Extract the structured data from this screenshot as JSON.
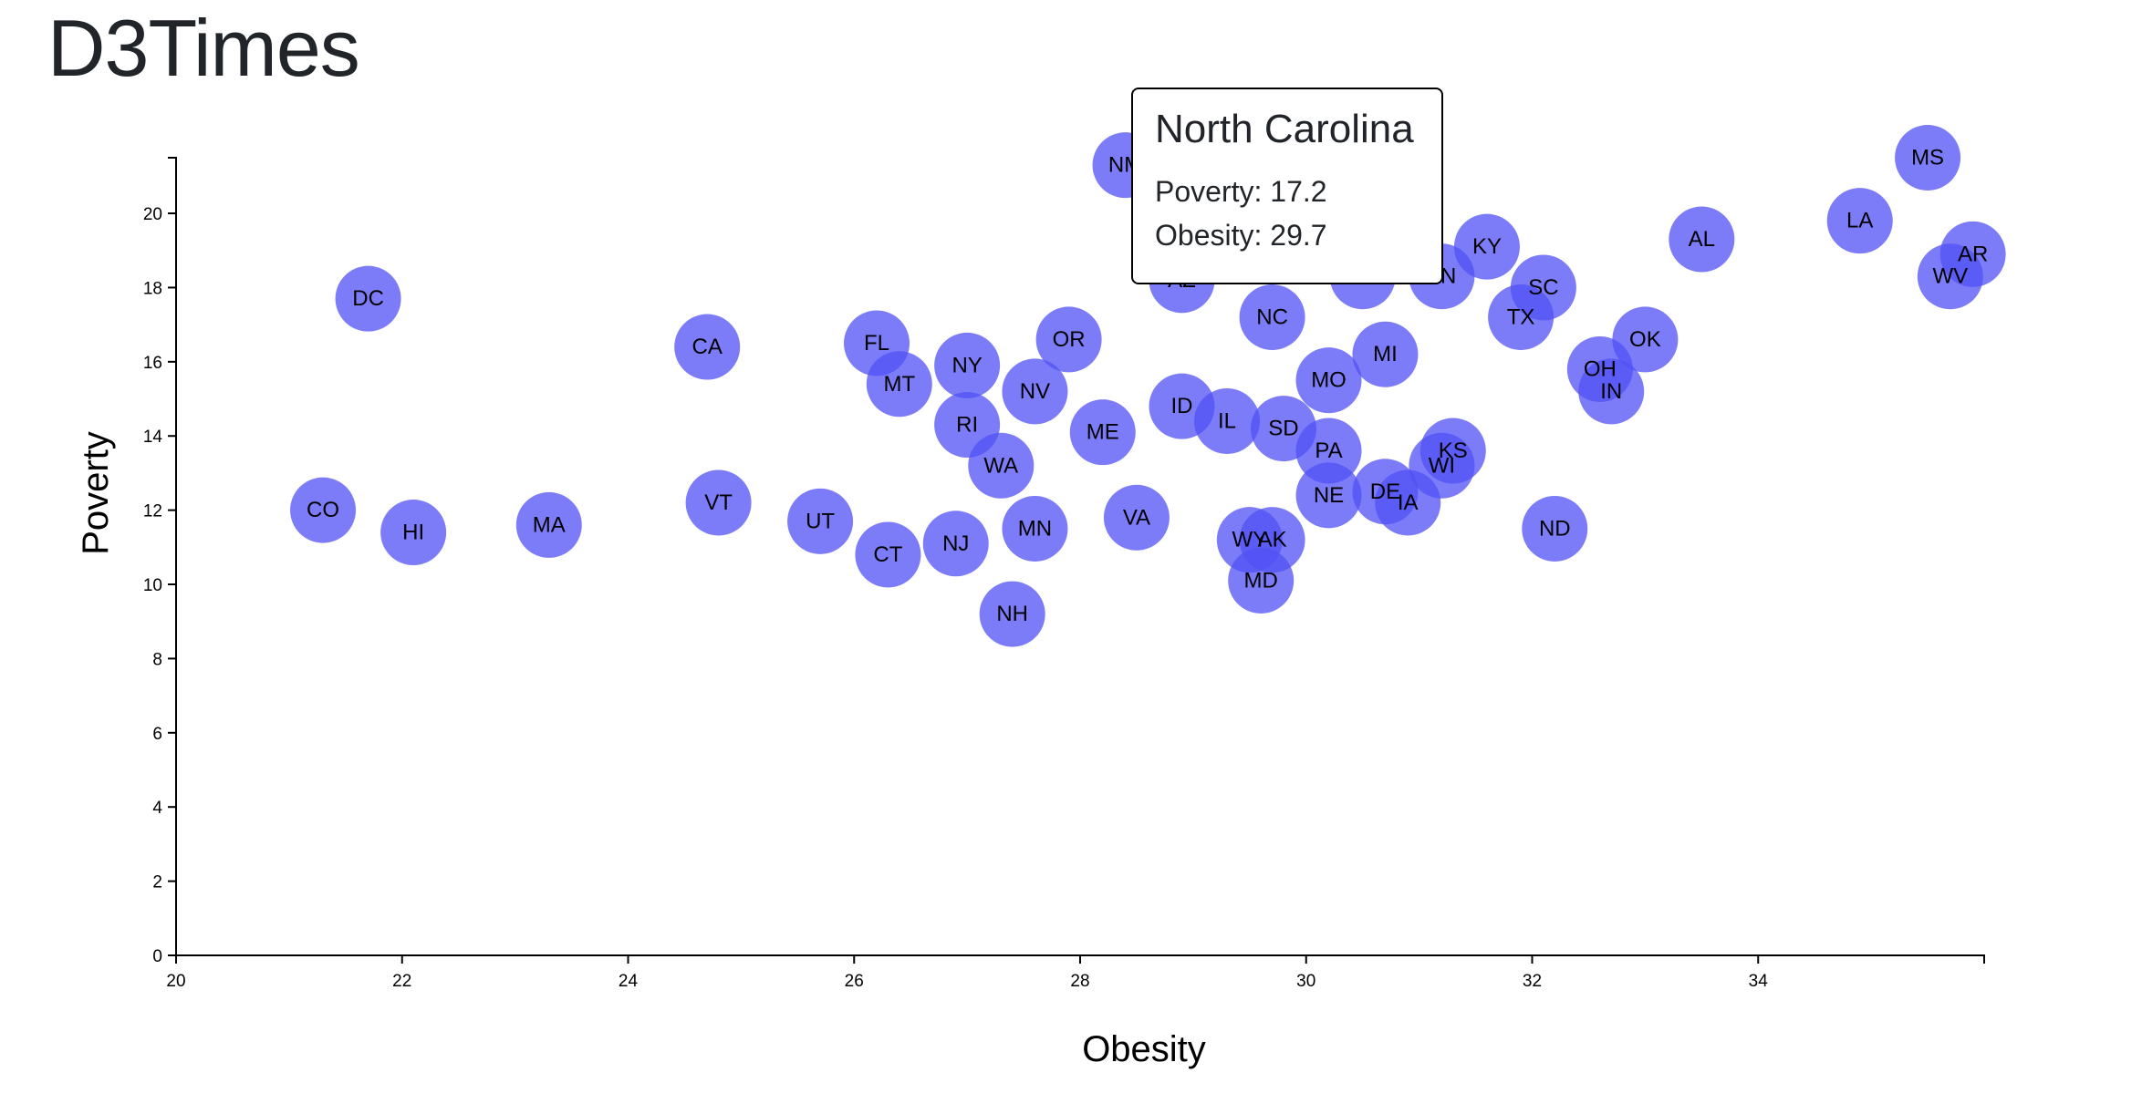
{
  "page": {
    "title": "D3Times"
  },
  "tooltip": {
    "state": "North Carolina",
    "poverty_label": "Poverty:",
    "poverty_value": "17.2",
    "obesity_label": "Obesity:",
    "obesity_value": "29.7"
  },
  "colors": {
    "marker": "#5050f5",
    "axis": "#000000"
  },
  "chart_data": {
    "type": "scatter",
    "xlabel": "Obesity",
    "ylabel": "Poverty",
    "xlim": [
      20,
      36
    ],
    "ylim": [
      0,
      21.5
    ],
    "xticks": [
      20,
      22,
      24,
      26,
      28,
      30,
      32,
      34
    ],
    "yticks": [
      0,
      2,
      4,
      6,
      8,
      10,
      12,
      14,
      16,
      18,
      20
    ],
    "grid": false,
    "points": [
      {
        "label": "MS",
        "x": 35.5,
        "y": 21.5
      },
      {
        "label": "NM",
        "x": 28.4,
        "y": 21.3
      },
      {
        "label": "LA",
        "x": 34.9,
        "y": 19.8
      },
      {
        "label": "AL",
        "x": 33.5,
        "y": 19.3
      },
      {
        "label": "KY",
        "x": 31.6,
        "y": 19.1
      },
      {
        "label": "AR",
        "x": 35.9,
        "y": 18.9
      },
      {
        "label": "WV",
        "x": 35.7,
        "y": 18.3
      },
      {
        "label": "GA",
        "x": 30.5,
        "y": 18.3
      },
      {
        "label": "TN",
        "x": 31.2,
        "y": 18.3
      },
      {
        "label": "AZ",
        "x": 28.9,
        "y": 18.2
      },
      {
        "label": "SC",
        "x": 32.1,
        "y": 18.0
      },
      {
        "label": "DC",
        "x": 21.7,
        "y": 17.7
      },
      {
        "label": "NC",
        "x": 29.7,
        "y": 17.2
      },
      {
        "label": "TX",
        "x": 31.9,
        "y": 17.2
      },
      {
        "label": "OR",
        "x": 27.9,
        "y": 16.6
      },
      {
        "label": "OK",
        "x": 33.0,
        "y": 16.6
      },
      {
        "label": "FL",
        "x": 26.2,
        "y": 16.5
      },
      {
        "label": "CA",
        "x": 24.7,
        "y": 16.4
      },
      {
        "label": "MI",
        "x": 30.7,
        "y": 16.2
      },
      {
        "label": "NY",
        "x": 27.0,
        "y": 15.9
      },
      {
        "label": "OH",
        "x": 32.6,
        "y": 15.8
      },
      {
        "label": "MO",
        "x": 30.2,
        "y": 15.5
      },
      {
        "label": "MT",
        "x": 26.4,
        "y": 15.4
      },
      {
        "label": "IN",
        "x": 32.7,
        "y": 15.2
      },
      {
        "label": "NV",
        "x": 27.6,
        "y": 15.2
      },
      {
        "label": "ID",
        "x": 28.9,
        "y": 14.8
      },
      {
        "label": "IL",
        "x": 29.3,
        "y": 14.4
      },
      {
        "label": "RI",
        "x": 27.0,
        "y": 14.3
      },
      {
        "label": "SD",
        "x": 29.8,
        "y": 14.2
      },
      {
        "label": "ME",
        "x": 28.2,
        "y": 14.1
      },
      {
        "label": "KS",
        "x": 31.3,
        "y": 13.6
      },
      {
        "label": "PA",
        "x": 30.2,
        "y": 13.6
      },
      {
        "label": "WA",
        "x": 27.3,
        "y": 13.2
      },
      {
        "label": "WI",
        "x": 31.2,
        "y": 13.2
      },
      {
        "label": "DE",
        "x": 30.7,
        "y": 12.5
      },
      {
        "label": "NE",
        "x": 30.2,
        "y": 12.4
      },
      {
        "label": "IA",
        "x": 30.9,
        "y": 12.2
      },
      {
        "label": "VT",
        "x": 24.8,
        "y": 12.2
      },
      {
        "label": "CO",
        "x": 21.3,
        "y": 12.0
      },
      {
        "label": "UT",
        "x": 25.7,
        "y": 11.7
      },
      {
        "label": "MA",
        "x": 23.3,
        "y": 11.6
      },
      {
        "label": "MN",
        "x": 27.6,
        "y": 11.5
      },
      {
        "label": "ND",
        "x": 32.2,
        "y": 11.5
      },
      {
        "label": "VA",
        "x": 28.5,
        "y": 11.8
      },
      {
        "label": "HI",
        "x": 22.1,
        "y": 11.4
      },
      {
        "label": "WY",
        "x": 29.5,
        "y": 11.2
      },
      {
        "label": "AK",
        "x": 29.7,
        "y": 11.2
      },
      {
        "label": "NJ",
        "x": 26.9,
        "y": 11.1
      },
      {
        "label": "CT",
        "x": 26.3,
        "y": 10.8
      },
      {
        "label": "MD",
        "x": 29.6,
        "y": 10.1
      },
      {
        "label": "NH",
        "x": 27.4,
        "y": 9.2
      }
    ]
  }
}
